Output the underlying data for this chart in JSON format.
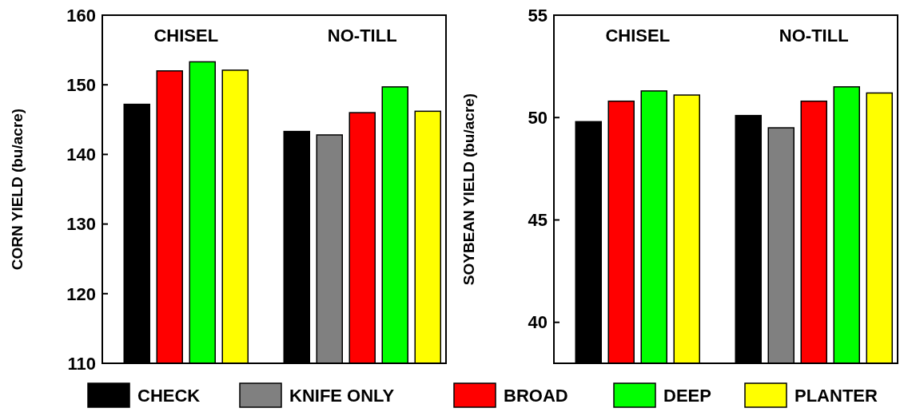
{
  "chart_data": [
    {
      "type": "bar",
      "ylabel": "CORN YIELD (bu/acre)",
      "categories": [
        "CHISEL",
        "NO-TILL"
      ],
      "ylim": [
        110,
        160
      ],
      "yticks": [
        110,
        120,
        130,
        140,
        150,
        160
      ],
      "legend": "bottom",
      "series": [
        {
          "name": "CHECK",
          "color": "#000000",
          "values": [
            147.2,
            143.3
          ]
        },
        {
          "name": "KNIFE ONLY",
          "color": "#808080",
          "values": [
            null,
            142.8
          ]
        },
        {
          "name": "BROAD",
          "color": "#ff0000",
          "values": [
            152.0,
            146.0
          ]
        },
        {
          "name": "DEEP",
          "color": "#00ff00",
          "values": [
            153.3,
            149.7
          ]
        },
        {
          "name": "PLANTER",
          "color": "#ffff00",
          "values": [
            152.1,
            146.2
          ]
        }
      ]
    },
    {
      "type": "bar",
      "ylabel": "SOYBEAN YIELD (bu/acre)",
      "categories": [
        "CHISEL",
        "NO-TILL"
      ],
      "ylim": [
        38,
        55
      ],
      "yticks": [
        40,
        45,
        50,
        55
      ],
      "series": [
        {
          "color": "#000000",
          "values": [
            49.8,
            50.1
          ]
        },
        {
          "color": "#808080",
          "values": [
            null,
            49.5
          ]
        },
        {
          "color": "#ff0000",
          "values": [
            50.8,
            50.8
          ]
        },
        {
          "color": "#00ff00",
          "values": [
            51.3,
            51.5
          ]
        },
        {
          "color": "#ffff00",
          "values": [
            51.1,
            51.2
          ]
        }
      ]
    }
  ]
}
